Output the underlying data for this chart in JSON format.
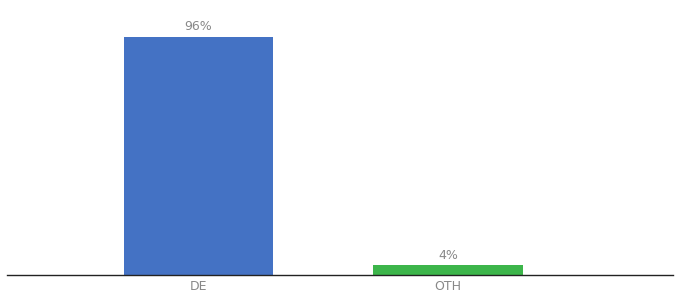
{
  "categories": [
    "DE",
    "OTH"
  ],
  "values": [
    96,
    4
  ],
  "bar_colors": [
    "#4472c4",
    "#3cb54a"
  ],
  "value_labels": [
    "96%",
    "4%"
  ],
  "background_color": "#ffffff",
  "xlabel": "",
  "ylabel": "",
  "ylim": [
    0,
    108
  ],
  "bar_width": 0.18,
  "x_positions": [
    0.28,
    0.58
  ],
  "xlim": [
    0.05,
    0.85
  ],
  "tick_fontsize": 9,
  "annotation_fontsize": 9,
  "annotation_color": "#888888",
  "tick_color": "#888888",
  "figsize": [
    6.8,
    3.0
  ],
  "dpi": 100
}
